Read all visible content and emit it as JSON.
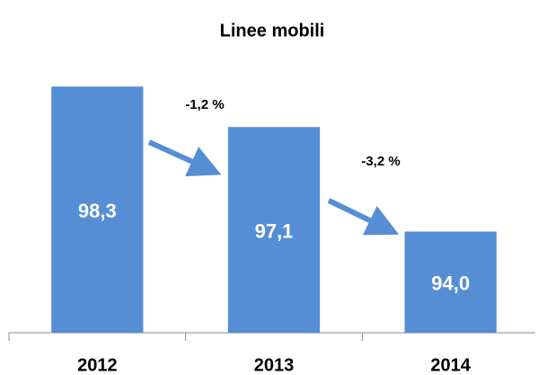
{
  "chart_data": {
    "type": "bar",
    "title": "Linee mobili",
    "categories": [
      "2012",
      "2013",
      "2014"
    ],
    "values": [
      98.3,
      97.1,
      94.0
    ],
    "value_labels": [
      "98,3",
      "97,1",
      "94,0"
    ],
    "color": "#558ed5",
    "ylim": [
      91,
      99
    ],
    "annotations": [
      "-1,2 %",
      "-3,2 %"
    ]
  }
}
